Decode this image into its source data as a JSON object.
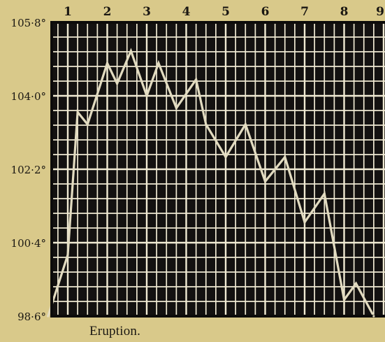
{
  "chart_data": {
    "type": "line",
    "title": "",
    "xlabel": "",
    "ylabel": "",
    "x_tick_labels": [
      "1",
      "2",
      "3",
      "4",
      "5",
      "6",
      "7",
      "8",
      "9"
    ],
    "y_tick_labels": [
      "105·8°",
      "104·0°",
      "102·2°",
      "100·4°",
      "98·6°"
    ],
    "y_tick_values": [
      105.8,
      104.0,
      102.2,
      100.4,
      98.6
    ],
    "ylim": [
      98.6,
      105.8
    ],
    "xlim": [
      0.5,
      9.0
    ],
    "grid": true,
    "annotation": "Eruption.",
    "series": [
      {
        "color": "#e2dbc0",
        "x": [
          0.5,
          1.0,
          1.25,
          1.5,
          2.0,
          2.25,
          2.6,
          3.0,
          3.3,
          3.75,
          4.25,
          4.5,
          5.0,
          5.5,
          6.0,
          6.5,
          7.0,
          7.5,
          8.0,
          8.3,
          8.75
        ],
        "y": [
          98.6,
          100.1,
          103.6,
          103.3,
          104.8,
          104.3,
          105.1,
          104.0,
          104.8,
          103.7,
          104.4,
          103.3,
          102.5,
          103.3,
          101.9,
          102.5,
          100.9,
          101.6,
          99.0,
          99.4,
          98.6
        ]
      }
    ],
    "colors": {
      "paper": "#d9c98a",
      "plot_background": "#131110",
      "grid_lines": "#f0ead3",
      "frame": "#0c0b0a",
      "text": "#1a1712"
    }
  }
}
